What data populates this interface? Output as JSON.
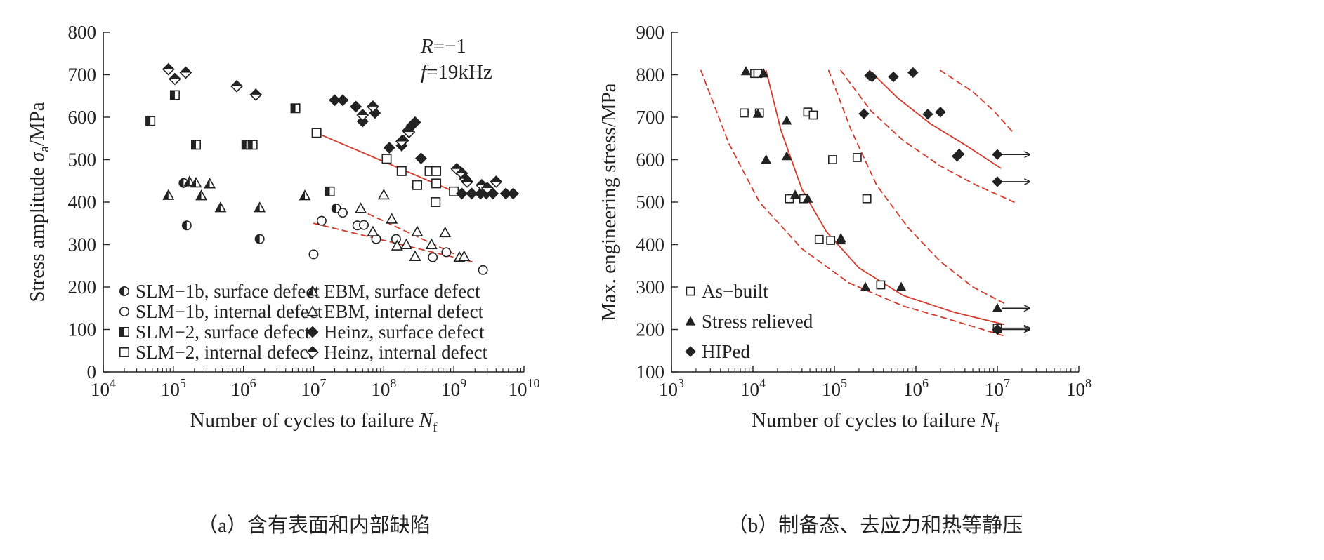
{
  "chart_data": [
    {
      "panel": "a",
      "type": "scatter",
      "caption": "（a）含有表面和内部缺陷",
      "xlabel": "Number of cycles to failure N",
      "xlabel_sub": "f",
      "ylabel": "Stress amplitude σ",
      "ylabel_sub": "a",
      "ylabel_unit": "/MPa",
      "xscale": "log",
      "xlim": [
        10000,
        10000000000
      ],
      "ylim": [
        0,
        800
      ],
      "xtick_base": "10",
      "xtick_exponents": [
        "4",
        "5",
        "6",
        "7",
        "8",
        "9",
        "10"
      ],
      "yticks": [
        "0",
        "100",
        "200",
        "300",
        "400",
        "500",
        "600",
        "700",
        "800"
      ],
      "annotations": [
        "R=−1",
        "f=19kHz"
      ],
      "legend_position": "bottom-center",
      "legend": [
        {
          "label": "SLM−1b, surface defect",
          "marker": "half-circle"
        },
        {
          "label": "SLM−1b, internal defect",
          "marker": "open-circle"
        },
        {
          "label": "SLM−2, surface defect",
          "marker": "half-square"
        },
        {
          "label": "SLM−2, internal defect",
          "marker": "open-square"
        },
        {
          "label": "EBM, surface defect",
          "marker": "half-triangle"
        },
        {
          "label": "EBM, internal defect",
          "marker": "open-triangle"
        },
        {
          "label": "Heinz, surface defect",
          "marker": "filled-diamond"
        },
        {
          "label": "Heinz, internal defect",
          "marker": "half-diamond"
        }
      ],
      "series": [
        {
          "name": "SLM−1b, surface defect",
          "marker": "half-circle",
          "points": [
            [
              140000,
              445
            ],
            [
              155000,
              345
            ],
            [
              1700000,
              313
            ],
            [
              21000000,
              385
            ]
          ]
        },
        {
          "name": "SLM−1b, internal defect",
          "marker": "open-circle",
          "points": [
            [
              10000000,
              277
            ],
            [
              13000000,
              356
            ],
            [
              26000000,
              375
            ],
            [
              42000000,
              345
            ],
            [
              52000000,
              346
            ],
            [
              78000000,
              313
            ],
            [
              150000000,
              313
            ],
            [
              500000000,
              270
            ],
            [
              780000000,
              282
            ],
            [
              2600000000,
              240
            ]
          ]
        },
        {
          "name": "SLM−2, surface defect",
          "marker": "half-square",
          "points": [
            [
              47000,
              591
            ],
            [
              105000,
              652
            ],
            [
              210000,
              535
            ],
            [
              1100000,
              535
            ],
            [
              1350000,
              535
            ],
            [
              5500000,
              621
            ],
            [
              17000000,
              425
            ]
          ]
        },
        {
          "name": "SLM−2, internal defect",
          "marker": "open-square",
          "points": [
            [
              11000000,
              563
            ],
            [
              110000000,
              502
            ],
            [
              180000000,
              473
            ],
            [
              300000000,
              440
            ],
            [
              450000000,
              473
            ],
            [
              560000000,
              473
            ],
            [
              550000000,
              400
            ],
            [
              560000000,
              444
            ],
            [
              1000000000,
              425
            ]
          ]
        },
        {
          "name": "EBM, surface defect",
          "marker": "half-triangle",
          "points": [
            [
              85000,
              416
            ],
            [
              170000,
              448
            ],
            [
              210000,
              445
            ],
            [
              250000,
              415
            ],
            [
              330000,
              443
            ],
            [
              470000,
              387
            ],
            [
              1700000,
              387
            ],
            [
              7500000,
              415
            ]
          ]
        },
        {
          "name": "EBM, internal defect",
          "marker": "open-triangle",
          "points": [
            [
              47000000,
              385
            ],
            [
              70000000,
              330
            ],
            [
              100000000,
              417
            ],
            [
              130000000,
              360
            ],
            [
              155000000,
              297
            ],
            [
              210000000,
              300
            ],
            [
              280000000,
              272
            ],
            [
              300000000,
              330
            ],
            [
              480000000,
              300
            ],
            [
              750000000,
              328
            ],
            [
              1200000000,
              270
            ],
            [
              1400000000,
              272
            ]
          ]
        },
        {
          "name": "Heinz, surface defect",
          "marker": "filled-diamond",
          "points": [
            [
              20000000,
              640
            ],
            [
              26000000,
              640
            ],
            [
              40000000,
              625
            ],
            [
              50000000,
              590
            ],
            [
              75000000,
              610
            ],
            [
              120000000,
              528
            ],
            [
              180000000,
              533
            ],
            [
              190000000,
              545
            ],
            [
              220000000,
              568
            ],
            [
              250000000,
              580
            ],
            [
              280000000,
              588
            ],
            [
              340000000,
              503
            ],
            [
              1300000000,
              420
            ],
            [
              1800000000,
              420
            ],
            [
              2400000000,
              420
            ],
            [
              2900000000,
              420
            ],
            [
              3600000000,
              420
            ],
            [
              5500000000,
              420
            ],
            [
              7000000000,
              420
            ]
          ]
        },
        {
          "name": "Heinz, internal defect",
          "marker": "half-diamond",
          "points": [
            [
              85000,
              713
            ],
            [
              105000,
              690
            ],
            [
              150000,
              705
            ],
            [
              800000,
              673
            ],
            [
              1500000,
              653
            ],
            [
              50000000,
              605
            ],
            [
              70000000,
              625
            ],
            [
              180000000,
              543
            ],
            [
              230000000,
              565
            ],
            [
              1100000000,
              478
            ],
            [
              1300000000,
              468
            ],
            [
              1450000000,
              455
            ],
            [
              1550000000,
              448
            ],
            [
              2500000000,
              440
            ],
            [
              3000000000,
              433
            ],
            [
              4000000000,
              448
            ]
          ]
        }
      ],
      "fit_lines": [
        {
          "style": "solid",
          "points": [
            [
              11000000,
              563
            ],
            [
              1000000000,
              425
            ]
          ]
        },
        {
          "style": "dashed",
          "points": [
            [
              45000000,
              382
            ],
            [
              1500000000,
              265
            ]
          ]
        },
        {
          "style": "dashed",
          "points": [
            [
              10000000,
              350
            ],
            [
              2000000000,
              258
            ]
          ]
        }
      ]
    },
    {
      "panel": "b",
      "type": "scatter",
      "caption": "（b）制备态、去应力和热等静压",
      "xlabel": "Number of cycles to failure N",
      "xlabel_sub": "f",
      "ylabel": "Max. engineering stress/MPa",
      "xscale": "log",
      "xlim": [
        1000,
        100000000
      ],
      "ylim": [
        100,
        900
      ],
      "xtick_base": "10",
      "xtick_exponents": [
        "3",
        "4",
        "5",
        "6",
        "7",
        "8"
      ],
      "yticks": [
        "100",
        "200",
        "300",
        "400",
        "500",
        "600",
        "700",
        "800",
        "900"
      ],
      "legend_position": "bottom-left",
      "legend": [
        {
          "label": "As−built",
          "marker": "open-square"
        },
        {
          "label": "Stress relieved",
          "marker": "filled-triangle"
        },
        {
          "label": "HIPed",
          "marker": "filled-diamond"
        }
      ],
      "series": [
        {
          "name": "As−built",
          "marker": "open-square",
          "points": [
            [
              7800,
              710
            ],
            [
              10500,
              803
            ],
            [
              11500,
              803
            ],
            [
              12000,
              710
            ],
            [
              28000,
              508
            ],
            [
              42000,
              508
            ],
            [
              47000,
              712
            ],
            [
              55000,
              705
            ],
            [
              65000,
              412
            ],
            [
              90000,
              410
            ],
            [
              95000,
              600
            ],
            [
              190000,
              605
            ],
            [
              250000,
              508
            ],
            [
              370000,
              305
            ],
            [
              10000000,
              203
            ]
          ]
        },
        {
          "name": "Stress relieved",
          "marker": "filled-triangle",
          "points": [
            [
              8200,
              808
            ],
            [
              11500,
              708
            ],
            [
              13500,
              803
            ],
            [
              14500,
              600
            ],
            [
              26000,
              692
            ],
            [
              26000,
              608
            ],
            [
              33000,
              517
            ],
            [
              47000,
              508
            ],
            [
              120000,
              415
            ],
            [
              120000,
              410
            ],
            [
              240000,
              300
            ],
            [
              660000,
              300
            ],
            [
              10000000,
              250
            ]
          ]
        },
        {
          "name": "HIPed",
          "marker": "filled-diamond",
          "points": [
            [
              230000,
              708
            ],
            [
              270000,
              798
            ],
            [
              290000,
              795
            ],
            [
              530000,
              795
            ],
            [
              920000,
              805
            ],
            [
              1400000,
              707
            ],
            [
              2000000,
              712
            ],
            [
              3200000,
              608
            ],
            [
              3400000,
              613
            ],
            [
              10000000,
              612
            ],
            [
              10000000,
              548
            ],
            [
              10000000,
              200
            ]
          ]
        }
      ],
      "runouts": [
        {
          "x": 10000000,
          "y": 612
        },
        {
          "x": 10000000,
          "y": 548
        },
        {
          "x": 10000000,
          "y": 250
        },
        {
          "x": 10000000,
          "y": 203
        },
        {
          "x": 10000000,
          "y": 200
        }
      ],
      "fit_lines": [
        {
          "style": "solid",
          "points": [
            [
              14500,
              810
            ],
            [
              22000,
              670
            ],
            [
              40000,
              530
            ],
            [
              80000,
              430
            ],
            [
              200000,
              345
            ],
            [
              700000,
              280
            ],
            [
              3000000,
              240
            ],
            [
              12000000,
              212
            ]
          ]
        },
        {
          "style": "dashed",
          "points": [
            [
              2300,
              810
            ],
            [
              5000,
              640
            ],
            [
              12000,
              500
            ],
            [
              40000,
              390
            ],
            [
              150000,
              310
            ],
            [
              700000,
              255
            ],
            [
              3000000,
              220
            ],
            [
              12000000,
              185
            ]
          ]
        },
        {
          "style": "dashed",
          "points": [
            [
              85000,
              810
            ],
            [
              160000,
              670
            ],
            [
              330000,
              540
            ],
            [
              800000,
              440
            ],
            [
              2000000,
              360
            ],
            [
              5000000,
              300
            ],
            [
              12000000,
              262
            ]
          ]
        },
        {
          "style": "solid",
          "points": [
            [
              270000,
              810
            ],
            [
              600000,
              745
            ],
            [
              1500000,
              685
            ],
            [
              4000000,
              635
            ],
            [
              11000000,
              580
            ]
          ]
        },
        {
          "style": "dashed",
          "points": [
            [
              120000,
              810
            ],
            [
              280000,
              715
            ],
            [
              700000,
              645
            ],
            [
              2000000,
              585
            ],
            [
              5500000,
              540
            ],
            [
              16000000,
              500
            ]
          ]
        },
        {
          "style": "dashed",
          "points": [
            [
              2000000,
              810
            ],
            [
              5000000,
              760
            ],
            [
              9000000,
              715
            ],
            [
              16000000,
              662
            ]
          ]
        }
      ]
    }
  ]
}
